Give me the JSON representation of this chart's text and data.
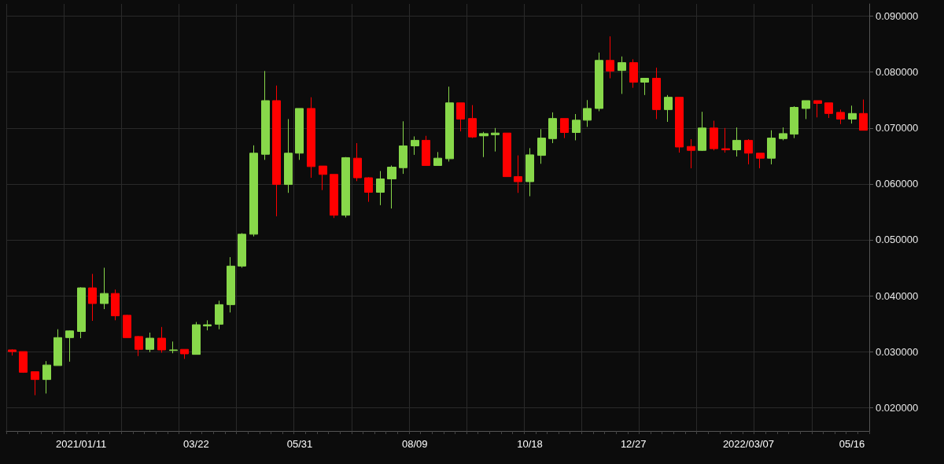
{
  "chart_data": {
    "type": "candlestick",
    "categories": [
      null,
      null,
      null,
      null,
      null,
      null,
      "2021/01/11",
      null,
      null,
      null,
      null,
      null,
      null,
      null,
      null,
      null,
      "03/22",
      null,
      null,
      null,
      null,
      null,
      null,
      null,
      null,
      "05/31",
      null,
      null,
      null,
      null,
      null,
      null,
      null,
      null,
      null,
      "08/09",
      null,
      null,
      null,
      null,
      null,
      null,
      null,
      null,
      null,
      "10/18",
      null,
      null,
      null,
      null,
      null,
      null,
      null,
      null,
      "12/27",
      null,
      null,
      null,
      null,
      null,
      null,
      null,
      null,
      null,
      "2022/03/07",
      null,
      null,
      null,
      null,
      null,
      null,
      null,
      null,
      "05/16",
      null
    ],
    "ohlc": [
      [
        0.0303,
        0.0304,
        0.0293,
        0.03
      ],
      [
        0.03,
        0.03,
        0.0262,
        0.0263
      ],
      [
        0.0264,
        0.0264,
        0.0222,
        0.025
      ],
      [
        0.025,
        0.0283,
        0.0225,
        0.0276
      ],
      [
        0.0275,
        0.034,
        0.0275,
        0.0325
      ],
      [
        0.0325,
        0.0338,
        0.0282,
        0.0337
      ],
      [
        0.0336,
        0.0415,
        0.0324,
        0.0414
      ],
      [
        0.0414,
        0.0439,
        0.0355,
        0.0386
      ],
      [
        0.0386,
        0.045,
        0.0376,
        0.0404
      ],
      [
        0.0404,
        0.0411,
        0.0356,
        0.0364
      ],
      [
        0.0365,
        0.0366,
        0.0325,
        0.0325
      ],
      [
        0.0327,
        0.0328,
        0.0292,
        0.0304
      ],
      [
        0.0304,
        0.0334,
        0.0299,
        0.0324
      ],
      [
        0.0324,
        0.0344,
        0.0298,
        0.0303
      ],
      [
        0.0302,
        0.0318,
        0.0297,
        0.0303
      ],
      [
        0.0304,
        0.0304,
        0.0287,
        0.0296
      ],
      [
        0.0295,
        0.0353,
        0.0295,
        0.0348
      ],
      [
        0.0346,
        0.0356,
        0.0338,
        0.0348
      ],
      [
        0.0349,
        0.0391,
        0.034,
        0.0384
      ],
      [
        0.0384,
        0.0469,
        0.037,
        0.0453
      ],
      [
        0.0453,
        0.0512,
        0.045,
        0.051
      ],
      [
        0.051,
        0.0669,
        0.0506,
        0.0655
      ],
      [
        0.0653,
        0.0802,
        0.0643,
        0.0749
      ],
      [
        0.0749,
        0.0776,
        0.0542,
        0.0599
      ],
      [
        0.0599,
        0.0716,
        0.0584,
        0.0655
      ],
      [
        0.0655,
        0.0735,
        0.0643,
        0.0735
      ],
      [
        0.0735,
        0.0755,
        0.0611,
        0.0631
      ],
      [
        0.0632,
        0.0632,
        0.0589,
        0.0617
      ],
      [
        0.0617,
        0.0617,
        0.0539,
        0.0544
      ],
      [
        0.0544,
        0.0648,
        0.054,
        0.0647
      ],
      [
        0.0646,
        0.0673,
        0.0605,
        0.0611
      ],
      [
        0.0611,
        0.0612,
        0.0568,
        0.0585
      ],
      [
        0.0585,
        0.0623,
        0.0562,
        0.0609
      ],
      [
        0.0609,
        0.0633,
        0.0556,
        0.063
      ],
      [
        0.0629,
        0.0712,
        0.0618,
        0.0668
      ],
      [
        0.0668,
        0.0685,
        0.0652,
        0.0678
      ],
      [
        0.0678,
        0.0686,
        0.0633,
        0.0633
      ],
      [
        0.0633,
        0.0657,
        0.0633,
        0.0646
      ],
      [
        0.0645,
        0.0774,
        0.064,
        0.0745
      ],
      [
        0.0745,
        0.0745,
        0.0694,
        0.0716
      ],
      [
        0.0717,
        0.0741,
        0.0682,
        0.0684
      ],
      [
        0.0686,
        0.0693,
        0.0648,
        0.069
      ],
      [
        0.0688,
        0.07,
        0.0658,
        0.0691
      ],
      [
        0.0691,
        0.0691,
        0.0613,
        0.0613
      ],
      [
        0.0613,
        0.0651,
        0.0584,
        0.0604
      ],
      [
        0.0604,
        0.0664,
        0.0578,
        0.0652
      ],
      [
        0.0651,
        0.0698,
        0.0636,
        0.0682
      ],
      [
        0.0681,
        0.0728,
        0.0673,
        0.0717
      ],
      [
        0.0717,
        0.0717,
        0.0682,
        0.0692
      ],
      [
        0.0692,
        0.0725,
        0.0678,
        0.0714
      ],
      [
        0.0714,
        0.075,
        0.0702,
        0.0735
      ],
      [
        0.0735,
        0.0835,
        0.073,
        0.0821
      ],
      [
        0.0821,
        0.0864,
        0.0789,
        0.0802
      ],
      [
        0.0803,
        0.0828,
        0.0761,
        0.0817
      ],
      [
        0.0817,
        0.0823,
        0.0772,
        0.0782
      ],
      [
        0.0782,
        0.0789,
        0.0759,
        0.0789
      ],
      [
        0.0789,
        0.0808,
        0.0716,
        0.0733
      ],
      [
        0.0733,
        0.0759,
        0.0711,
        0.0755
      ],
      [
        0.0755,
        0.0755,
        0.0656,
        0.0666
      ],
      [
        0.0667,
        0.068,
        0.0628,
        0.066
      ],
      [
        0.066,
        0.0729,
        0.0659,
        0.07
      ],
      [
        0.07,
        0.0713,
        0.066,
        0.0663
      ],
      [
        0.0663,
        0.07,
        0.0656,
        0.0661
      ],
      [
        0.0661,
        0.0701,
        0.0649,
        0.0678
      ],
      [
        0.0678,
        0.068,
        0.0635,
        0.0655
      ],
      [
        0.0655,
        0.0655,
        0.0628,
        0.0646
      ],
      [
        0.0646,
        0.0696,
        0.0635,
        0.0682
      ],
      [
        0.0681,
        0.0701,
        0.0678,
        0.069
      ],
      [
        0.0689,
        0.0739,
        0.0682,
        0.0737
      ],
      [
        0.0735,
        0.0749,
        0.0716,
        0.0749
      ],
      [
        0.0749,
        0.0749,
        0.0719,
        0.0744
      ],
      [
        0.0745,
        0.0745,
        0.0718,
        0.0726
      ],
      [
        0.0728,
        0.0733,
        0.0707,
        0.0716
      ],
      [
        0.0716,
        0.074,
        0.0708,
        0.0726
      ],
      [
        0.0726,
        0.0751,
        0.0696,
        0.0696
      ]
    ],
    "colors": [
      "#ff0000",
      "#ff0000",
      "#ff0000",
      "#88d84a",
      "#88d84a",
      "#88d84a",
      "#88d84a",
      "#ff0000",
      "#88d84a",
      "#ff0000",
      "#ff0000",
      "#ff0000",
      "#88d84a",
      "#ff0000",
      "#88d84a",
      "#ff0000",
      "#88d84a",
      "#88d84a",
      "#88d84a",
      "#88d84a",
      "#88d84a",
      "#88d84a",
      "#88d84a",
      "#ff0000",
      "#88d84a",
      "#88d84a",
      "#ff0000",
      "#ff0000",
      "#ff0000",
      "#88d84a",
      "#ff0000",
      "#ff0000",
      "#88d84a",
      "#88d84a",
      "#88d84a",
      "#88d84a",
      "#ff0000",
      "#88d84a",
      "#88d84a",
      "#ff0000",
      "#ff0000",
      "#88d84a",
      "#88d84a",
      "#ff0000",
      "#ff0000",
      "#88d84a",
      "#88d84a",
      "#88d84a",
      "#ff0000",
      "#88d84a",
      "#88d84a",
      "#88d84a",
      "#ff0000",
      "#88d84a",
      "#ff0000",
      "#88d84a",
      "#ff0000",
      "#88d84a",
      "#ff0000",
      "#ff0000",
      "#88d84a",
      "#ff0000",
      "#ff0000",
      "#88d84a",
      "#ff0000",
      "#ff0000",
      "#88d84a",
      "#88d84a",
      "#88d84a",
      "#88d84a",
      "#ff0000",
      "#ff0000",
      "#ff0000",
      "#88d84a",
      "#ff0000"
    ],
    "ylim": [
      0.0158,
      0.0922
    ],
    "yticks": [
      {
        "value": 0.02,
        "label": "0.020000"
      },
      {
        "value": 0.03,
        "label": "0.030000"
      },
      {
        "value": 0.04,
        "label": "0.040000"
      },
      {
        "value": 0.05,
        "label": "0.050000"
      },
      {
        "value": 0.06,
        "label": "0.060000"
      },
      {
        "value": 0.07,
        "label": "0.070000"
      },
      {
        "value": 0.08,
        "label": "0.080000"
      },
      {
        "value": 0.09,
        "label": "0.090000"
      }
    ],
    "grid": true
  }
}
